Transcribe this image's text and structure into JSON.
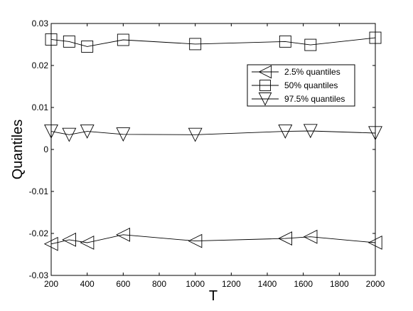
{
  "chart_data": {
    "type": "line",
    "title": "",
    "xlabel": "T",
    "ylabel": "Quantiles",
    "xlim": [
      200,
      2000
    ],
    "ylim": [
      -0.03,
      0.03
    ],
    "xticks": [
      "200",
      "400",
      "600",
      "800",
      "1000",
      "1200",
      "1400",
      "1600",
      "1800",
      "2000"
    ],
    "yticks": [
      "-0.03",
      "-0.02",
      "-0.01",
      "0",
      "0.01",
      "0.02",
      "0.03"
    ],
    "grid": false,
    "legend_position": "top-right",
    "series": [
      {
        "name": "2.5% quantiles",
        "marker": "triangle-left",
        "x": [
          200,
          300,
          400,
          600,
          1000,
          1500,
          1640,
          2000
        ],
        "y": [
          -0.0225,
          -0.0215,
          -0.0222,
          -0.0203,
          -0.0218,
          -0.0212,
          -0.0208,
          -0.0222
        ]
      },
      {
        "name": "50% quantiles",
        "marker": "square",
        "x": [
          200,
          300,
          400,
          600,
          1000,
          1500,
          1640,
          2000
        ],
        "y": [
          0.0262,
          0.0257,
          0.0245,
          0.0261,
          0.0251,
          0.0257,
          0.0249,
          0.0266
        ]
      },
      {
        "name": "97.5% quantiles",
        "marker": "triangle-down",
        "x": [
          200,
          300,
          400,
          600,
          1000,
          1500,
          1640,
          2000
        ],
        "y": [
          0.0043,
          0.0035,
          0.0043,
          0.0036,
          0.0035,
          0.0043,
          0.0044,
          0.0039
        ]
      }
    ],
    "colors": {
      "line": "#000000",
      "background": "#ffffff"
    }
  }
}
